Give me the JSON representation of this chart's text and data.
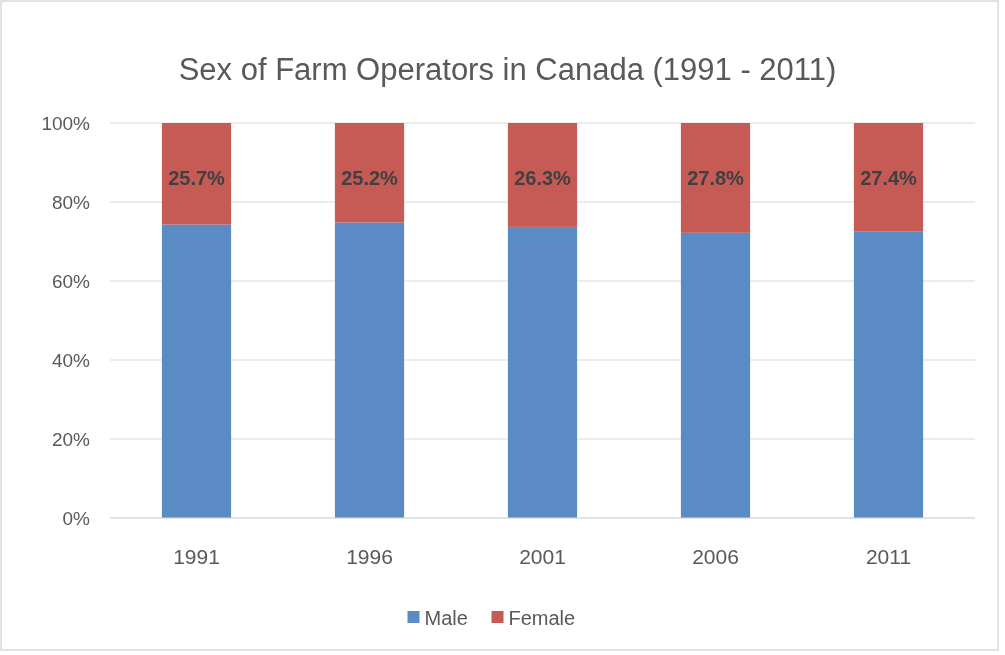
{
  "chart_data": {
    "type": "bar",
    "stacked": true,
    "title": "Sex of Farm Operators in Canada (1991 - 2011)",
    "categories": [
      "1991",
      "1996",
      "2001",
      "2006",
      "2011"
    ],
    "series": [
      {
        "name": "Male",
        "color": "#5b8bc5",
        "values": [
          74.3,
          74.8,
          73.7,
          72.2,
          72.6
        ]
      },
      {
        "name": "Female",
        "color": "#c65a55",
        "values": [
          25.7,
          25.2,
          26.3,
          27.8,
          27.4
        ],
        "value_labels": [
          "25.7%",
          "25.2%",
          "26.3%",
          "27.8%",
          "27.4%"
        ]
      }
    ],
    "ylim": [
      0,
      100
    ],
    "yticks": [
      {
        "value": 0,
        "label": "0%"
      },
      {
        "value": 20,
        "label": "20%"
      },
      {
        "value": 40,
        "label": "40%"
      },
      {
        "value": 60,
        "label": "60%"
      },
      {
        "value": 80,
        "label": "80%"
      },
      {
        "value": 100,
        "label": "100%"
      }
    ],
    "grid": "y",
    "legend": "bottom"
  }
}
